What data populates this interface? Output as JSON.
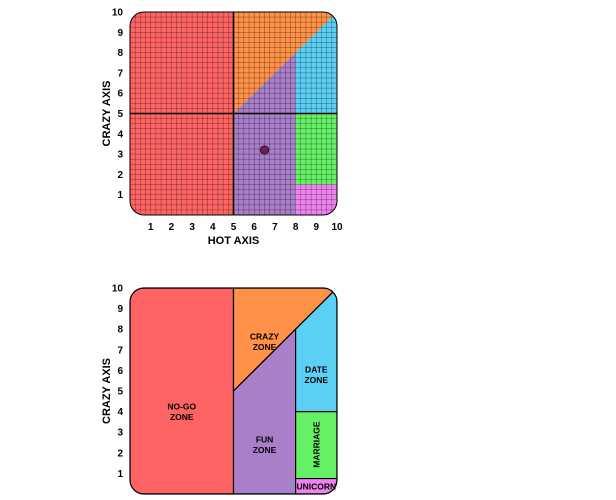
{
  "colors": {
    "nogo": "#ff6464",
    "crazy": "#ff9248",
    "fun": "#a87fc8",
    "date": "#5ccff5",
    "marriage": "#66f066",
    "unicorn": "#ee82ee",
    "point": "#6a1f55"
  },
  "chart_data": [
    {
      "type": "scatter",
      "title": "",
      "xlabel": "HOT AXIS",
      "ylabel": "CRAZY AXIS",
      "xlim": [
        0,
        10
      ],
      "ylim": [
        0,
        10
      ],
      "xticks": [
        "1",
        "2",
        "3",
        "4",
        "5",
        "6",
        "7",
        "8",
        "9",
        "10"
      ],
      "yticks": [
        "1",
        "2",
        "3",
        "4",
        "5",
        "6",
        "7",
        "8",
        "9",
        "10"
      ],
      "grid": true,
      "points": [
        {
          "x": 6.5,
          "y": 3.2
        }
      ]
    },
    {
      "type": "area",
      "title": "",
      "xlabel": "",
      "ylabel": "CRAZY AXIS",
      "ylim": [
        0,
        10
      ],
      "yticks": [
        "1",
        "2",
        "3",
        "4",
        "5",
        "6",
        "7",
        "8",
        "9",
        "10"
      ],
      "grid": false,
      "zones": [
        {
          "key": "nogo",
          "label": "NO-GO ZONE"
        },
        {
          "key": "crazy",
          "label": "CRAZY ZONE"
        },
        {
          "key": "fun",
          "label": "FUN ZONE"
        },
        {
          "key": "date",
          "label": "DATE ZONE"
        },
        {
          "key": "marriage",
          "label": "MARRIAGE"
        },
        {
          "key": "unicorn",
          "label": "UNICORN"
        }
      ]
    }
  ]
}
